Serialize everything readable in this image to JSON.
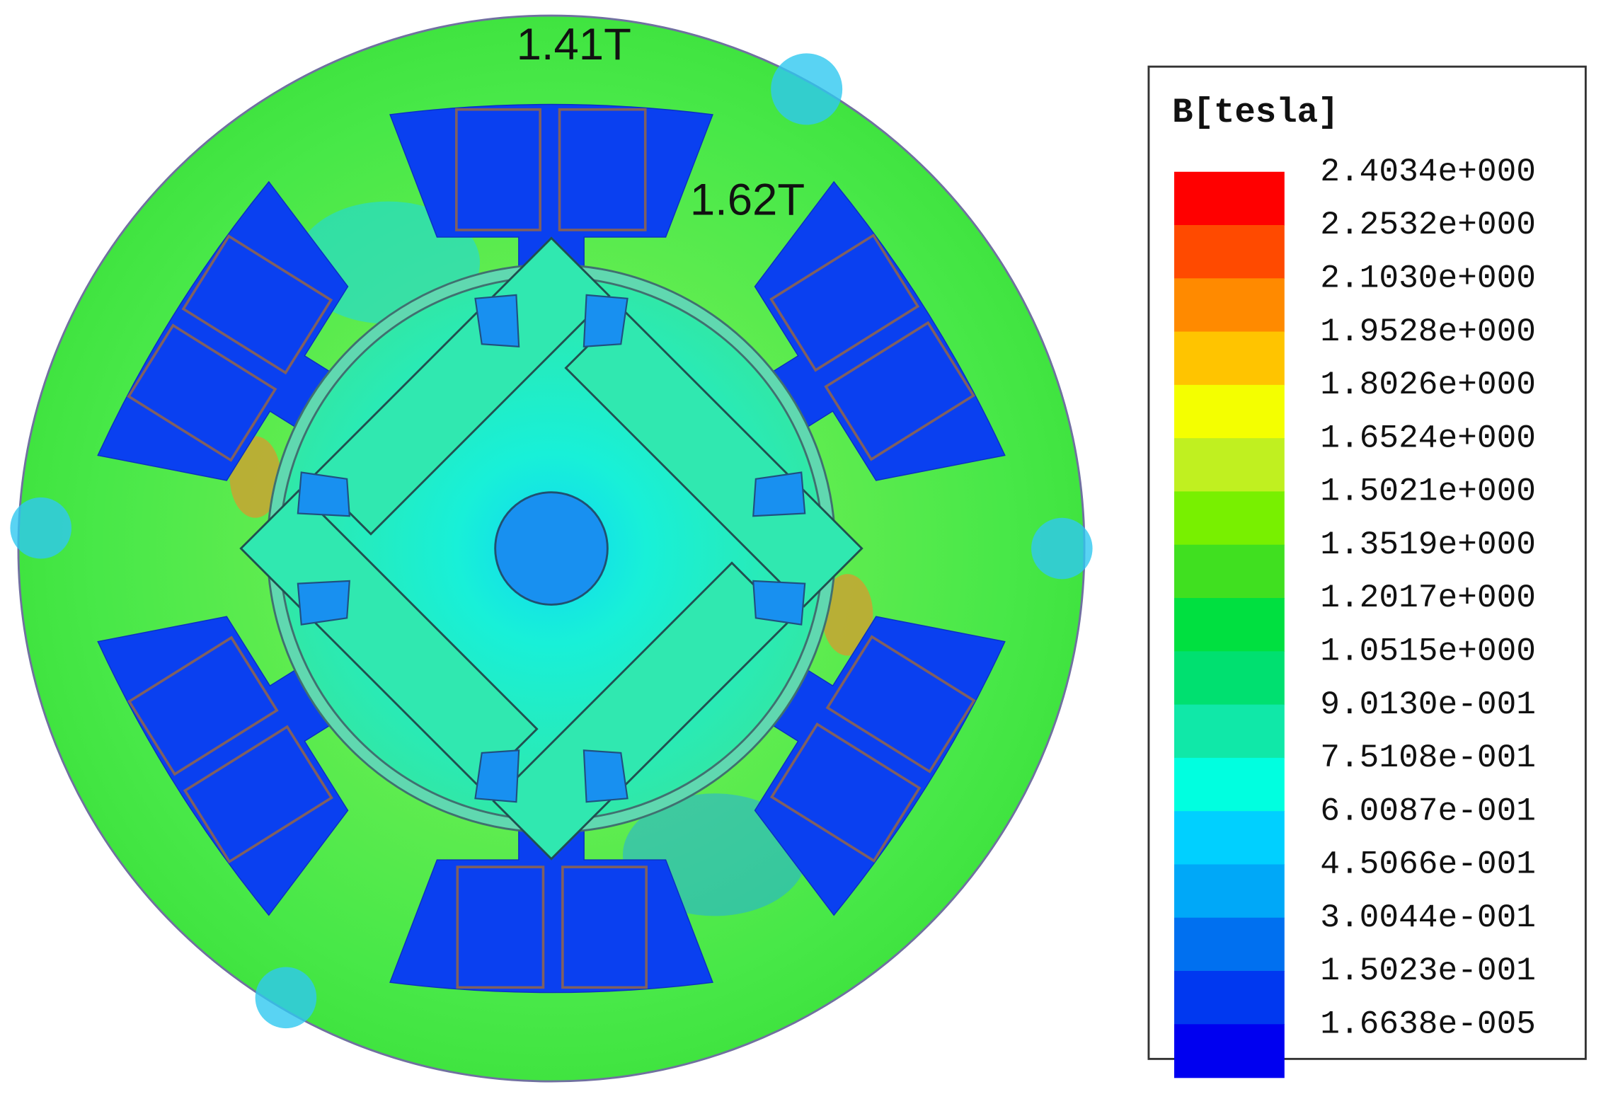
{
  "annotations": [
    "1.41T",
    "1.62T"
  ],
  "legend": {
    "title": "B[tesla]",
    "labels": [
      "2.4034e+000",
      "2.2532e+000",
      "2.1030e+000",
      "1.9528e+000",
      "1.8026e+000",
      "1.6524e+000",
      "1.5021e+000",
      "1.3519e+000",
      "1.2017e+000",
      "1.0515e+000",
      "9.0130e-001",
      "7.5108e-001",
      "6.0087e-001",
      "4.5066e-001",
      "3.0044e-001",
      "1.5023e-001",
      "1.6638e-005"
    ],
    "colors": [
      "#ff0000",
      "#ff4a00",
      "#ff8a00",
      "#ffc400",
      "#f4ff00",
      "#c0f020",
      "#78f000",
      "#40e020",
      "#00e040",
      "#00e070",
      "#10e8a8",
      "#00ffe0",
      "#00d0ff",
      "#00a8f8",
      "#0070f0",
      "#0038f0",
      "#0000f0"
    ]
  }
}
